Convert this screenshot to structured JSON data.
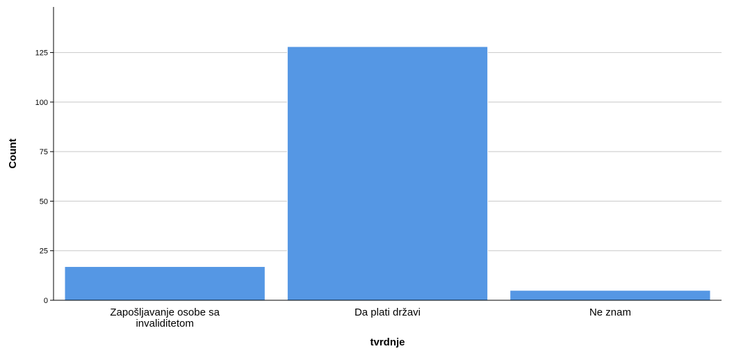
{
  "chart_data": {
    "type": "bar",
    "categories": [
      [
        "Zapošljavanje osobe sa",
        "invaliditetom"
      ],
      [
        "Da plati državi"
      ],
      [
        "Ne znam"
      ]
    ],
    "values": [
      17,
      128,
      5
    ],
    "xlabel": "tvrdnje",
    "ylabel": "Count",
    "ylim": [
      0,
      148
    ],
    "yticks": [
      0,
      25,
      50,
      75,
      100,
      125
    ],
    "grid": true,
    "bar_color": "#5597e4",
    "grid_color": "#c8c8c8"
  }
}
